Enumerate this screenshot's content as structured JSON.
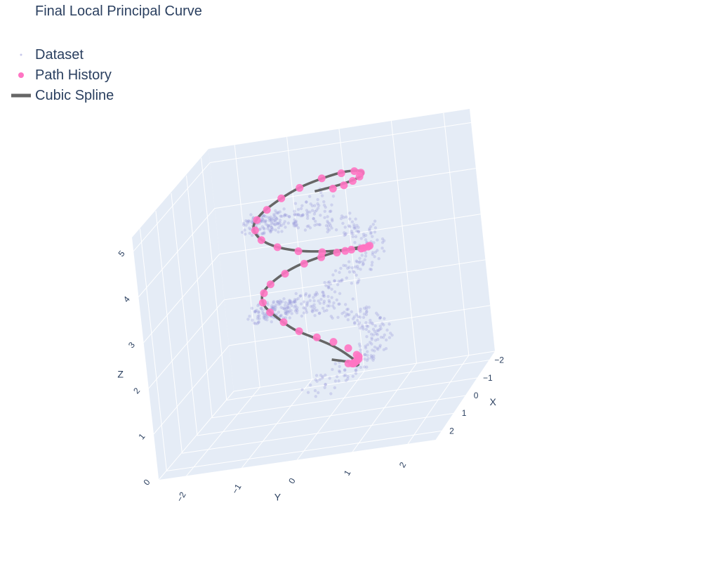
{
  "chart_data": {
    "type": "scatter",
    "title": "Final Local Principal Curve",
    "legend_position": "top-left",
    "axes": {
      "x": {
        "label": "X",
        "ticks": [
          "−2",
          "−1",
          "0",
          "1",
          "2"
        ],
        "range": [
          -2.5,
          2.5
        ]
      },
      "y": {
        "label": "Y",
        "ticks": [
          "−2",
          "−1",
          "0",
          "1",
          "2"
        ],
        "range": [
          -2.5,
          2.5
        ]
      },
      "z": {
        "label": "Z",
        "ticks": [
          "0",
          "1",
          "2",
          "3",
          "4",
          "5"
        ],
        "range": [
          0,
          5.3
        ]
      }
    },
    "grid": true,
    "scene_background": "#e5ecf6",
    "series": [
      {
        "name": "Dataset",
        "kind": "markers",
        "color": "#8f8fd8",
        "description_points": "helix with radius 1, two turns",
        "helix": {
          "radius": 1.0,
          "turns": 2.1,
          "z_start": 1.0,
          "z_end": 5.0,
          "noise": 0.25,
          "n": 700
        }
      },
      {
        "name": "Path History",
        "kind": "markers",
        "color": "#ff75c3",
        "points": [
          [
            -0.2,
            0.35,
            1.0
          ],
          [
            -0.1,
            0.45,
            1.02
          ],
          [
            0.0,
            0.5,
            1.05
          ],
          [
            0.1,
            0.55,
            1.1
          ],
          [
            0.2,
            0.6,
            1.15
          ],
          [
            0.3,
            0.65,
            1.2
          ],
          [
            0.35,
            0.7,
            1.25
          ],
          [
            0.4,
            0.72,
            1.32
          ],
          [
            0.45,
            0.7,
            1.38
          ],
          [
            0.6,
            0.6,
            1.6
          ],
          [
            0.8,
            0.4,
            1.85
          ],
          [
            0.95,
            0.15,
            2.05
          ],
          [
            0.98,
            -0.15,
            2.25
          ],
          [
            0.85,
            -0.45,
            2.45
          ],
          [
            0.6,
            -0.75,
            2.62
          ],
          [
            0.3,
            -0.95,
            2.75
          ],
          [
            0.0,
            -1.0,
            2.85
          ],
          [
            -0.3,
            -0.95,
            2.92
          ],
          [
            -0.6,
            -0.75,
            3.0
          ],
          [
            -0.85,
            -0.45,
            3.07
          ],
          [
            -0.95,
            -0.15,
            3.12
          ],
          [
            -0.95,
            0.15,
            3.17
          ],
          [
            -0.85,
            0.45,
            3.22
          ],
          [
            -0.6,
            0.75,
            3.3
          ],
          [
            -0.35,
            0.9,
            3.4
          ],
          [
            -0.1,
            1.0,
            3.5
          ],
          [
            0.3,
            0.95,
            3.6
          ],
          [
            0.65,
            0.75,
            3.72
          ],
          [
            0.9,
            0.4,
            3.85
          ],
          [
            1.0,
            0.0,
            3.98
          ],
          [
            0.9,
            -0.4,
            4.1
          ],
          [
            0.65,
            -0.75,
            4.22
          ],
          [
            0.3,
            -0.95,
            4.33
          ],
          [
            -0.05,
            -1.0,
            4.43
          ],
          [
            -0.4,
            -0.9,
            4.5
          ],
          [
            -0.7,
            -0.7,
            4.6
          ],
          [
            -0.9,
            -0.4,
            4.7
          ],
          [
            -1.0,
            0.0,
            4.8
          ],
          [
            -0.9,
            0.4,
            4.88
          ],
          [
            -0.7,
            0.7,
            4.95
          ],
          [
            -0.4,
            0.9,
            5.0
          ],
          [
            -0.1,
            0.95,
            5.02
          ],
          [
            0.2,
            0.9,
            5.05
          ],
          [
            0.45,
            0.8,
            5.07
          ],
          [
            0.65,
            0.65,
            5.1
          ]
        ]
      },
      {
        "name": "Cubic Spline",
        "kind": "line",
        "color": "#666666",
        "points": [
          [
            -0.75,
            -0.1,
            0.95
          ],
          [
            -0.35,
            0.35,
            0.97
          ],
          [
            0.05,
            0.55,
            1.02
          ],
          [
            0.35,
            0.68,
            1.15
          ],
          [
            0.55,
            0.6,
            1.4
          ],
          [
            0.8,
            0.4,
            1.75
          ],
          [
            0.95,
            0.1,
            2.05
          ],
          [
            0.95,
            -0.25,
            2.3
          ],
          [
            0.75,
            -0.6,
            2.55
          ],
          [
            0.4,
            -0.9,
            2.72
          ],
          [
            0.0,
            -1.02,
            2.85
          ],
          [
            -0.45,
            -0.9,
            2.95
          ],
          [
            -0.8,
            -0.6,
            3.05
          ],
          [
            -1.0,
            -0.15,
            3.12
          ],
          [
            -0.95,
            0.3,
            3.2
          ],
          [
            -0.7,
            0.7,
            3.3
          ],
          [
            -0.3,
            0.95,
            3.45
          ],
          [
            0.2,
            1.0,
            3.58
          ],
          [
            0.6,
            0.8,
            3.72
          ],
          [
            0.9,
            0.45,
            3.86
          ],
          [
            1.02,
            0.0,
            4.0
          ],
          [
            0.92,
            -0.45,
            4.14
          ],
          [
            0.62,
            -0.8,
            4.27
          ],
          [
            0.2,
            -1.0,
            4.38
          ],
          [
            -0.25,
            -0.98,
            4.47
          ],
          [
            -0.65,
            -0.75,
            4.58
          ],
          [
            -0.92,
            -0.4,
            4.7
          ],
          [
            -1.02,
            0.05,
            4.8
          ],
          [
            -0.9,
            0.45,
            4.9
          ],
          [
            -0.6,
            0.8,
            4.98
          ],
          [
            -0.2,
            1.0,
            5.05
          ],
          [
            0.2,
            1.0,
            5.1
          ],
          [
            0.6,
            0.8,
            5.15
          ],
          [
            0.95,
            0.4,
            5.2
          ]
        ]
      }
    ]
  }
}
